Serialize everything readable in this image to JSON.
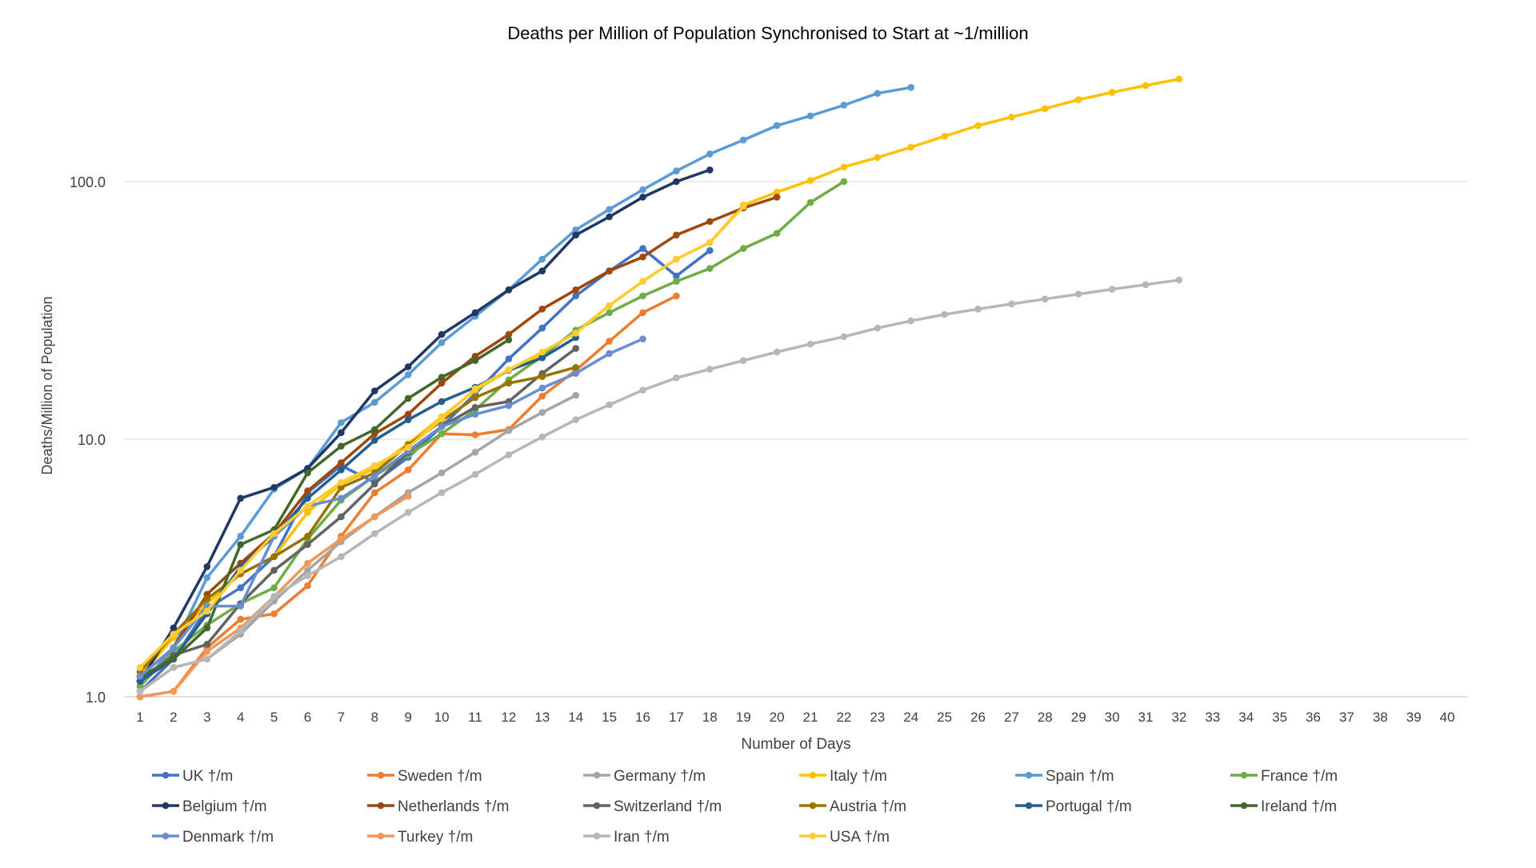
{
  "chart_data": {
    "type": "line",
    "title": "Deaths per Million of Population Synchronised to Start at ~1/million",
    "xlabel": "Number of Days",
    "ylabel": "Deaths/Million of Population",
    "yscale": "log",
    "ylim": [
      1,
      400
    ],
    "y_ticks": [
      1,
      10,
      100
    ],
    "y_tick_labels": [
      "1.0",
      "10.0",
      "100.0"
    ],
    "xlim": [
      1,
      40
    ],
    "x_ticks": [
      "1",
      "2",
      "3",
      "4",
      "5",
      "6",
      "7",
      "8",
      "9",
      "10",
      "11",
      "12",
      "13",
      "14",
      "15",
      "16",
      "17",
      "18",
      "19",
      "20",
      "21",
      "22",
      "23",
      "24",
      "25",
      "26",
      "27",
      "28",
      "29",
      "30",
      "31",
      "32",
      "33",
      "34",
      "35",
      "36",
      "37",
      "38",
      "39",
      "40"
    ],
    "grid": "horizontal",
    "legend_position": "bottom",
    "series": [
      {
        "name": "UK †/m",
        "color": "#4472C4",
        "values": [
          1.05,
          1.4,
          2.2,
          2.65,
          3.5,
          6.2,
          7.9,
          6.8,
          8.5,
          11.2,
          15.0,
          20.5,
          27.0,
          36.0,
          45.0,
          55.0,
          43.0,
          54.0
        ]
      },
      {
        "name": "Sweden  †/m",
        "color": "#ED7D31",
        "values": [
          1.0,
          1.05,
          1.55,
          2.0,
          2.1,
          2.7,
          4.2,
          6.2,
          7.6,
          10.5,
          10.4,
          10.9,
          14.7,
          18.5,
          24.0,
          31.0,
          36.0
        ]
      },
      {
        "name": "Germany  †/m",
        "color": "#A5A5A5",
        "values": [
          1.05,
          1.3,
          1.4,
          1.75,
          2.35,
          3.1,
          4.0,
          5.0,
          6.2,
          7.4,
          8.9,
          10.8,
          12.7,
          14.8
        ]
      },
      {
        "name": "Italy  †/m",
        "color": "#FFC000",
        "values": [
          1.2,
          1.7,
          2.3,
          3.0,
          3.5,
          5.2,
          6.7,
          7.7,
          9.6,
          12.2,
          15.5,
          18.5,
          21.5,
          26.0,
          33.0,
          41.0,
          50.0,
          58.0,
          81.0,
          91.0,
          101.0,
          114.0,
          124.0,
          136.0,
          150.0,
          165.0,
          178.0,
          192.0,
          208.0,
          222.0,
          236.0,
          250.0
        ]
      },
      {
        "name": "Spain  †/m",
        "color": "#5B9BD5",
        "values": [
          1.1,
          1.55,
          2.9,
          4.2,
          6.4,
          7.7,
          11.6,
          13.9,
          17.8,
          23.7,
          30.0,
          38.0,
          50.0,
          65.0,
          78.0,
          93.0,
          110.0,
          128.0,
          145.0,
          165.0,
          180.0,
          198.0,
          220.0,
          232.0
        ]
      },
      {
        "name": "France  †/m",
        "color": "#70AD47",
        "values": [
          1.1,
          1.5,
          1.9,
          2.3,
          2.65,
          4.1,
          5.8,
          7.2,
          8.7,
          10.5,
          13.0,
          17.0,
          21.0,
          26.5,
          31.0,
          36.0,
          41.0,
          46.0,
          55.0,
          63.0,
          83.0,
          100.0
        ]
      },
      {
        "name": "Belgium  †/m",
        "color": "#1F3864",
        "values": [
          1.15,
          1.85,
          3.2,
          5.9,
          6.5,
          7.7,
          10.6,
          15.4,
          19.1,
          25.5,
          31.0,
          38.0,
          45.0,
          62.0,
          73.0,
          87.0,
          100.0,
          111.0
        ]
      },
      {
        "name": "Netherlands  †/m",
        "color": "#9E480E",
        "values": [
          1.2,
          1.55,
          2.5,
          3.3,
          4.3,
          6.3,
          8.1,
          10.5,
          12.5,
          16.5,
          21.0,
          25.5,
          32.0,
          38.0,
          45.0,
          51.0,
          62.0,
          70.0,
          79.0,
          87.0
        ]
      },
      {
        "name": "Switzerland  †/m",
        "color": "#636363",
        "values": [
          1.15,
          1.45,
          1.6,
          2.3,
          3.1,
          3.9,
          5.0,
          6.7,
          8.9,
          11.2,
          13.3,
          14.0,
          18.0,
          22.5
        ]
      },
      {
        "name": "Austria  †/m",
        "color": "#997300",
        "values": [
          1.25,
          1.75,
          2.4,
          3.0,
          3.5,
          4.2,
          6.5,
          7.4,
          9.5,
          11.8,
          14.5,
          16.5,
          17.5,
          19.0
        ]
      },
      {
        "name": "Portugal  †/m",
        "color": "#255E91",
        "values": [
          1.15,
          1.4,
          2.1,
          3.2,
          4.2,
          5.9,
          7.6,
          9.9,
          11.9,
          14.0,
          15.9,
          18.5,
          20.7,
          24.8
        ]
      },
      {
        "name": "Ireland  †/m",
        "color": "#43682B",
        "values": [
          1.2,
          1.4,
          1.85,
          3.9,
          4.45,
          7.4,
          9.4,
          10.9,
          14.4,
          17.4,
          20.2,
          24.3
        ]
      },
      {
        "name": "Denmark  †/m",
        "color": "#698ED0",
        "values": [
          1.2,
          1.55,
          2.25,
          2.25,
          4.2,
          5.5,
          5.9,
          7.2,
          9.0,
          11.2,
          12.5,
          13.5,
          15.8,
          18.0,
          21.5,
          24.5
        ]
      },
      {
        "name": "Turkey †/m",
        "color": "#F1975A",
        "values": [
          1.0,
          1.05,
          1.5,
          1.85,
          2.45,
          3.3,
          4.1,
          5.0,
          6.0
        ]
      },
      {
        "name": "Iran †/m",
        "color": "#B7B7B7",
        "values": [
          1.05,
          1.3,
          1.4,
          1.8,
          2.45,
          2.95,
          3.5,
          4.3,
          5.2,
          6.2,
          7.3,
          8.7,
          10.2,
          11.9,
          13.6,
          15.5,
          17.3,
          18.7,
          20.2,
          21.8,
          23.4,
          25.0,
          27.0,
          28.8,
          30.5,
          32.0,
          33.5,
          35.0,
          36.6,
          38.2,
          39.8,
          41.5
        ]
      },
      {
        "name": "USA †/m",
        "color": "#FFCD33",
        "values": [
          1.3,
          1.75,
          2.15,
          3.1,
          4.3,
          5.5,
          6.8,
          7.9,
          9.3,
          12.0,
          15.7,
          18.6,
          21.8,
          25.8,
          33.0,
          41.0,
          50.0,
          58.0,
          80.0
        ]
      }
    ]
  }
}
